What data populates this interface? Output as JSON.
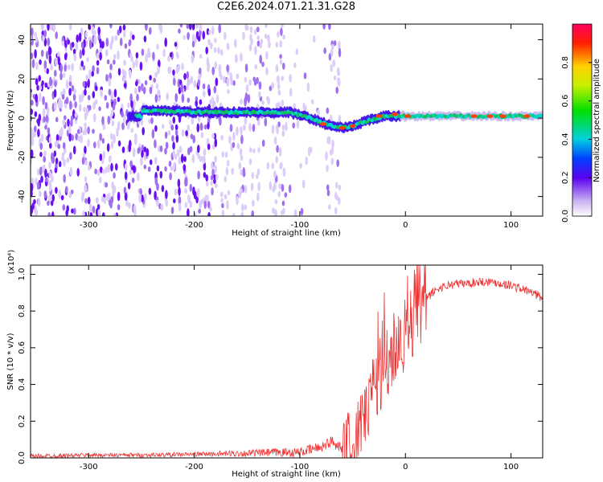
{
  "title": "C2E6.2024.071.21.31.G28",
  "chart_data": [
    {
      "type": "heatmap",
      "xlabel": "Height of straight line (km)",
      "ylabel": "Frequency (Hz)",
      "xlim": [
        -355,
        130
      ],
      "ylim": [
        -50,
        48
      ],
      "xticks": [
        -300,
        -200,
        -100,
        0,
        100
      ],
      "yticks": [
        -40,
        -20,
        0,
        20,
        40
      ],
      "xtick_labels": [
        "-300",
        "-200",
        "-100",
        "0",
        "100"
      ],
      "ytick_labels": [
        "-40",
        "-20",
        "0",
        "20",
        "40"
      ],
      "colorbar": {
        "label": "Normalized spectral amplitude",
        "range": [
          0,
          1
        ],
        "ticks": [
          0.0,
          0.2,
          0.4,
          0.6,
          0.8
        ],
        "tick_labels": [
          "0.0",
          "0.2",
          "0.4",
          "0.6",
          "0.8"
        ]
      },
      "ridge": [
        {
          "x": -250,
          "y": 4
        },
        {
          "x": -200,
          "y": 3
        },
        {
          "x": -150,
          "y": 3
        },
        {
          "x": -110,
          "y": 3
        },
        {
          "x": -90,
          "y": 0
        },
        {
          "x": -70,
          "y": -4
        },
        {
          "x": -55,
          "y": -5
        },
        {
          "x": -40,
          "y": -2
        },
        {
          "x": -20,
          "y": 1
        },
        {
          "x": 0,
          "y": 1
        },
        {
          "x": 50,
          "y": 1
        },
        {
          "x": 130,
          "y": 1
        }
      ]
    },
    {
      "type": "line",
      "xlabel": "Height of straight line (km)",
      "ylabel": "SNR (10 * v/v)",
      "y_multiplier": "(x10⁴)",
      "xlim": [
        -355,
        130
      ],
      "ylim": [
        0,
        1.05
      ],
      "xticks": [
        -300,
        -200,
        -100,
        0,
        100
      ],
      "yticks": [
        0.0,
        0.2,
        0.4,
        0.6,
        0.8,
        1.0
      ],
      "xtick_labels": [
        "-300",
        "-200",
        "-100",
        "0",
        "100"
      ],
      "ytick_labels": [
        "0.0",
        "0.2",
        "0.4",
        "0.6",
        "0.8",
        "1.0"
      ],
      "color": "#ee3333",
      "x": [
        -355,
        -300,
        -250,
        -200,
        -150,
        -120,
        -100,
        -80,
        -70,
        -60,
        -50,
        -45,
        -40,
        -35,
        -30,
        -25,
        -20,
        -15,
        -10,
        -5,
        0,
        5,
        10,
        20,
        30,
        40,
        50,
        60,
        70,
        80,
        90,
        100,
        110,
        120,
        130
      ],
      "y": [
        0.01,
        0.015,
        0.015,
        0.02,
        0.025,
        0.03,
        0.03,
        0.06,
        0.09,
        0.06,
        0.03,
        0.1,
        0.2,
        0.28,
        0.4,
        0.45,
        0.5,
        0.55,
        0.6,
        0.62,
        0.68,
        0.74,
        0.8,
        0.87,
        0.92,
        0.94,
        0.95,
        0.95,
        0.96,
        0.96,
        0.95,
        0.94,
        0.92,
        0.9,
        0.87
      ]
    }
  ]
}
